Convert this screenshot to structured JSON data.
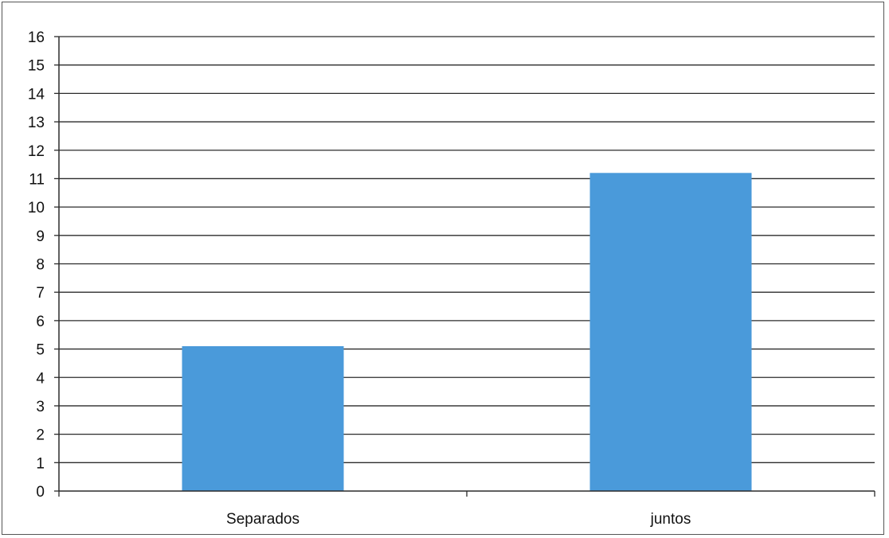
{
  "chart_data": {
    "type": "bar",
    "categories": [
      "Separados",
      "juntos"
    ],
    "values": [
      5.1,
      11.2
    ],
    "ylim": [
      0,
      16
    ],
    "yticks": [
      0,
      1,
      2,
      3,
      4,
      5,
      6,
      7,
      8,
      9,
      10,
      11,
      12,
      13,
      14,
      15,
      16
    ],
    "grid": true,
    "legend": "none",
    "title": "",
    "xlabel": "",
    "ylabel": ""
  },
  "colors": {
    "bar": "#4a9ada",
    "grid": "#2b2b2b",
    "axis": "#2b2b2b"
  }
}
